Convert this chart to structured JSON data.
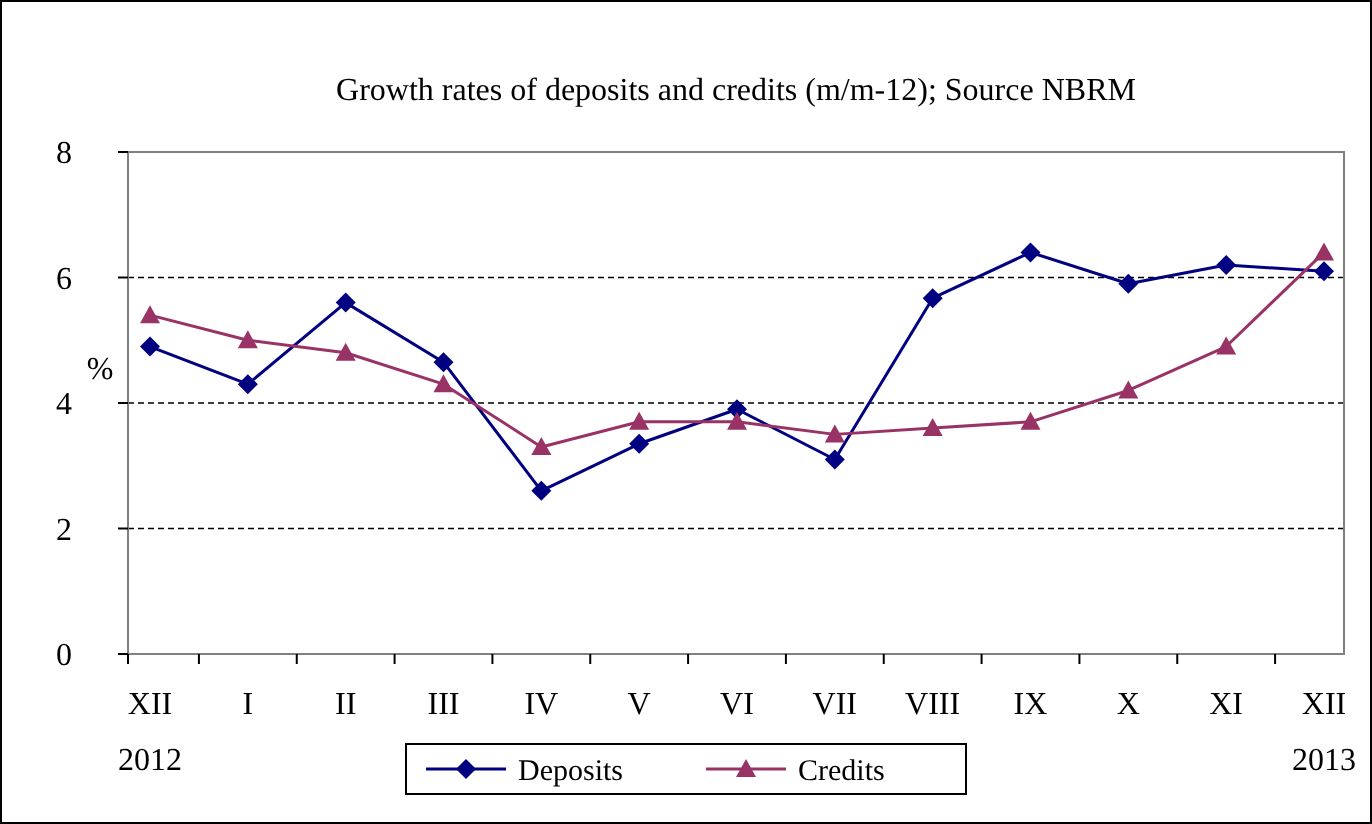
{
  "chart_data": {
    "type": "line",
    "title": "Growth rates of deposits and credits (m/m-12); Source NBRM",
    "ylabel": "%",
    "categories": [
      "XII 2012",
      "I",
      "II",
      "III",
      "IV",
      "V",
      "VI",
      "VII",
      "VIII",
      "IX",
      "X",
      "XI",
      "XII 2013"
    ],
    "series": [
      {
        "name": "Deposits",
        "color": "#000080",
        "marker": "diamond",
        "values": [
          4.9,
          4.3,
          5.6,
          4.65,
          2.6,
          3.35,
          3.9,
          3.1,
          5.67,
          6.4,
          5.9,
          6.2,
          6.1
        ]
      },
      {
        "name": "Credits",
        "color": "#993366",
        "marker": "triangle",
        "values": [
          5.4,
          5.0,
          4.8,
          4.3,
          3.3,
          3.7,
          3.7,
          3.5,
          3.6,
          3.7,
          4.2,
          4.9,
          6.4
        ]
      }
    ],
    "ylim": [
      0,
      8
    ],
    "yticks": [
      0,
      2,
      4,
      6,
      8
    ],
    "grid": "y",
    "legend": "bottom",
    "line_style": "solid"
  }
}
